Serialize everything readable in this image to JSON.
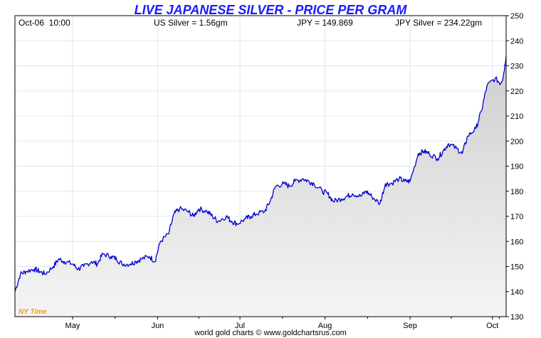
{
  "header": {
    "title": "LIVE JAPANESE SILVER - PRICE PER GRAM",
    "datetime": "Oct-06  10:00",
    "us_silver": "US Silver = 1.56gm",
    "jpy_rate": "JPY = 149.869",
    "jpy_silver": "JPY Silver = 234.22gm"
  },
  "footer": {
    "credit": "world gold charts © www.goldchartsrus.com"
  },
  "timezone_label": "NY Time",
  "colors": {
    "title": "#1a1aff",
    "line": "#0000cc",
    "timezone": "#ff9900",
    "grid": "#dde8f2"
  },
  "chart_data": {
    "type": "area",
    "title": "LIVE JAPANESE SILVER - PRICE PER GRAM",
    "xlabel": "",
    "ylabel": "",
    "ylim": [
      130,
      250
    ],
    "y_ticks": [
      "130",
      "140",
      "150",
      "160",
      "170",
      "180",
      "190",
      "200",
      "210",
      "220",
      "230",
      "240",
      "250"
    ],
    "x_ticks": [
      "May",
      "Jun",
      "Jul",
      "Aug",
      "Sep",
      "Oct"
    ],
    "x_tick_dates": [
      "2023-05-01",
      "2023-06-01",
      "2023-07-01",
      "2023-08-01",
      "2023-09-01",
      "2023-10-01"
    ],
    "x_range": [
      "2023-04-10",
      "2023-10-06"
    ],
    "grid": true,
    "series": [
      {
        "x": [
          "2023-04-10",
          "2023-04-12",
          "2023-04-14",
          "2023-04-17",
          "2023-04-19",
          "2023-04-21",
          "2023-04-24",
          "2023-04-26",
          "2023-04-28",
          "2023-05-01",
          "2023-05-03",
          "2023-05-05",
          "2023-05-08",
          "2023-05-10",
          "2023-05-12",
          "2023-05-15",
          "2023-05-17",
          "2023-05-19",
          "2023-05-22",
          "2023-05-24",
          "2023-05-26",
          "2023-05-29",
          "2023-05-31",
          "2023-06-02",
          "2023-06-05",
          "2023-06-07",
          "2023-06-09",
          "2023-06-12",
          "2023-06-14",
          "2023-06-16",
          "2023-06-19",
          "2023-06-21",
          "2023-06-23",
          "2023-06-26",
          "2023-06-28",
          "2023-06-30",
          "2023-07-03",
          "2023-07-05",
          "2023-07-07",
          "2023-07-10",
          "2023-07-12",
          "2023-07-14",
          "2023-07-17",
          "2023-07-19",
          "2023-07-21",
          "2023-07-24",
          "2023-07-26",
          "2023-07-28",
          "2023-07-31",
          "2023-08-02",
          "2023-08-04",
          "2023-08-07",
          "2023-08-09",
          "2023-08-11",
          "2023-08-14",
          "2023-08-16",
          "2023-08-18",
          "2023-08-21",
          "2023-08-23",
          "2023-08-25",
          "2023-08-28",
          "2023-08-30",
          "2023-09-01",
          "2023-09-04",
          "2023-09-06",
          "2023-09-08",
          "2023-09-11",
          "2023-09-13",
          "2023-09-15",
          "2023-09-18",
          "2023-09-20",
          "2023-09-22",
          "2023-09-25",
          "2023-09-27",
          "2023-09-29",
          "2023-10-02",
          "2023-10-04",
          "2023-10-05",
          "2023-10-06"
        ],
        "values": [
          140,
          147,
          148,
          149,
          148,
          147,
          150,
          153,
          152,
          151,
          149,
          150,
          152,
          151,
          155,
          154,
          153,
          151,
          151,
          152,
          153,
          154,
          152,
          160,
          163,
          171,
          173,
          172,
          170,
          173,
          172,
          170,
          168,
          170,
          168,
          167,
          169,
          170,
          171,
          172,
          176,
          182,
          183,
          182,
          184,
          185,
          184,
          183,
          180,
          179,
          176,
          177,
          178,
          179,
          178,
          180,
          178,
          175,
          183,
          183,
          185,
          184,
          184,
          195,
          196,
          195,
          193,
          196,
          199,
          197,
          195,
          202,
          205,
          212,
          222,
          225,
          223,
          226,
          234
        ]
      }
    ]
  }
}
